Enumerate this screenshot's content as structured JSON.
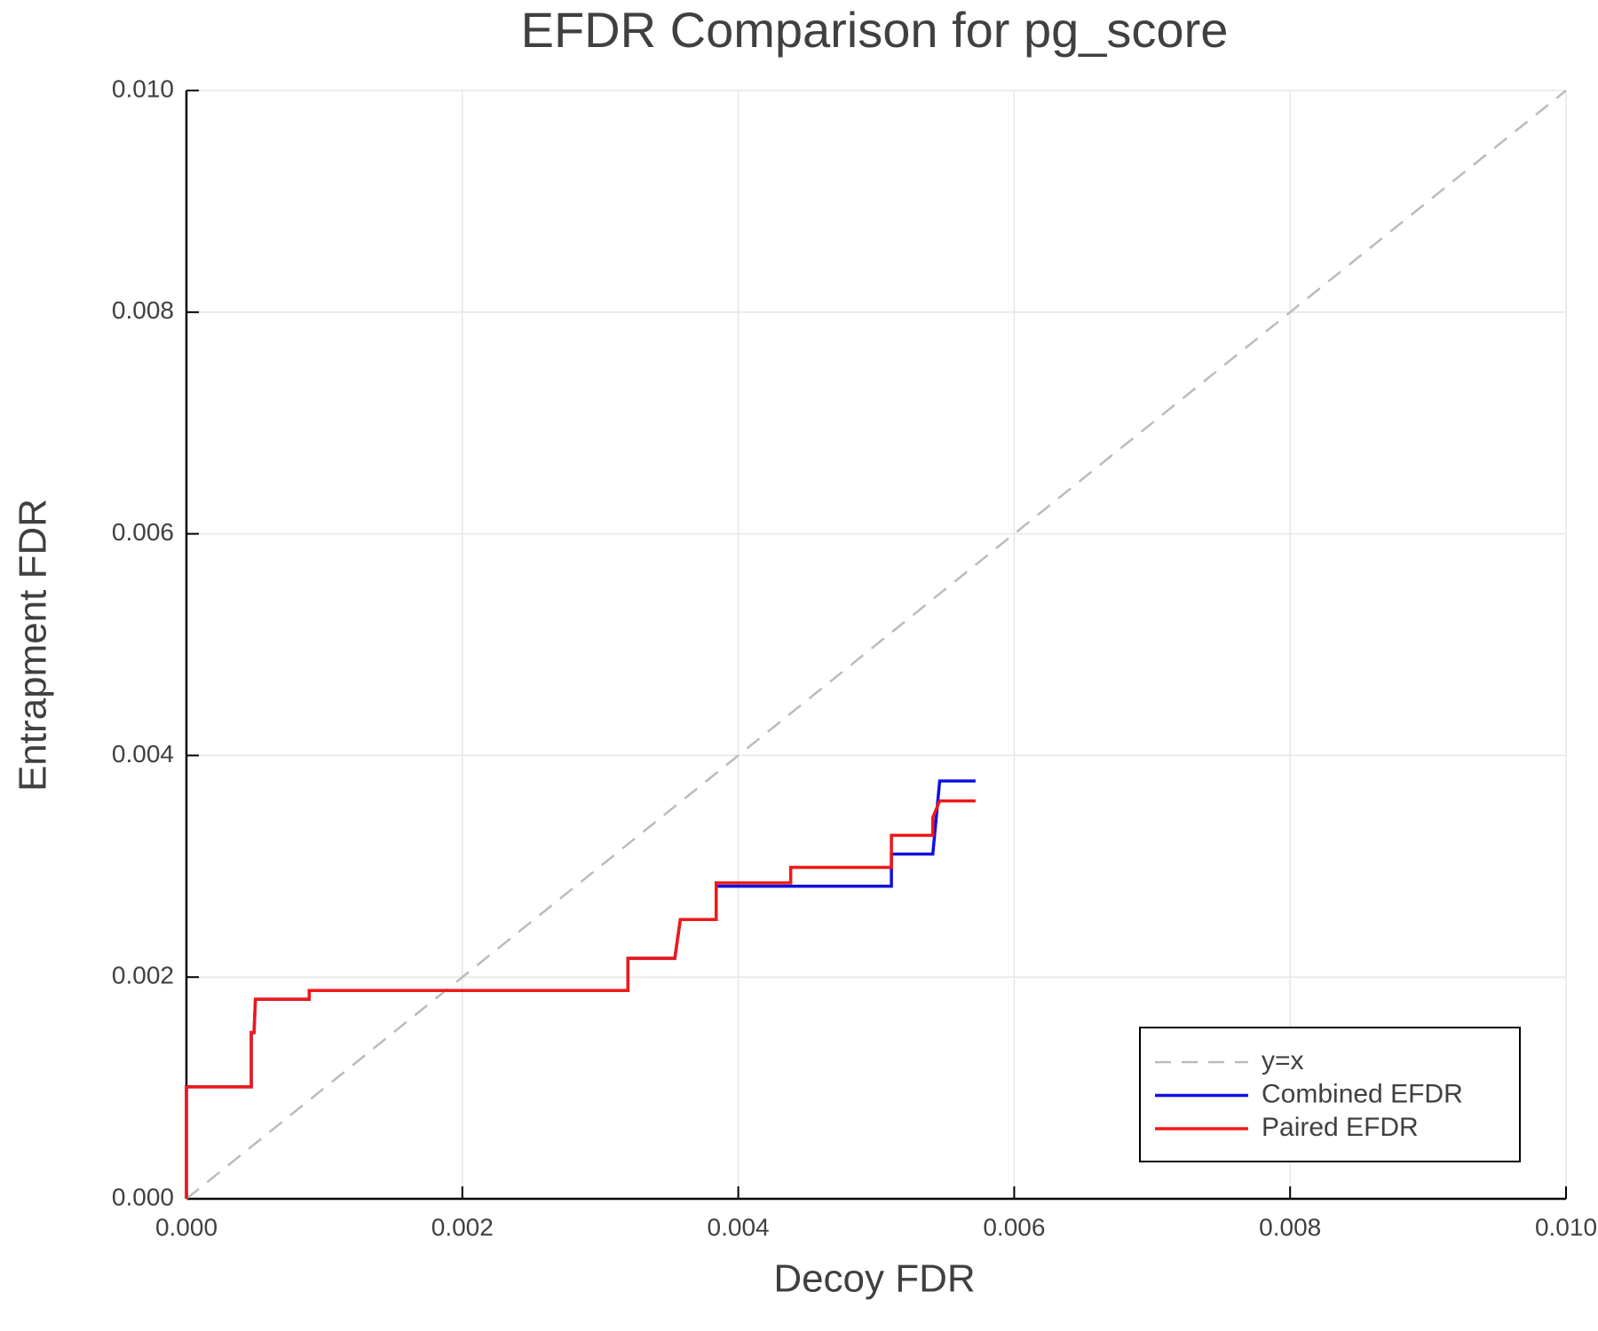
{
  "chart_data": {
    "type": "line",
    "title": "EFDR Comparison for pg_score",
    "x_label": "Decoy FDR",
    "y_label": "Entrapment FDR",
    "xlim": [
      0,
      0.01
    ],
    "ylim": [
      0,
      0.01
    ],
    "xticks": [
      {
        "value": 0,
        "label": "0.000"
      },
      {
        "value": 0.002,
        "label": "0.002"
      },
      {
        "value": 0.004,
        "label": "0.004"
      },
      {
        "value": 0.006,
        "label": "0.006"
      },
      {
        "value": 0.008,
        "label": "0.008"
      },
      {
        "value": 0.01,
        "label": "0.010"
      }
    ],
    "yticks": [
      {
        "value": 0,
        "label": "0.000"
      },
      {
        "value": 0.002,
        "label": "0.002"
      },
      {
        "value": 0.004,
        "label": "0.004"
      },
      {
        "value": 0.006,
        "label": "0.006"
      },
      {
        "value": 0.008,
        "label": "0.008"
      },
      {
        "value": 0.01,
        "label": "0.010"
      }
    ],
    "grid": true,
    "legend": "lower right",
    "series": [
      {
        "name": "y=x",
        "color": "#bbbbbb",
        "dashed": true,
        "x": [
          0,
          0.01
        ],
        "values": [
          0,
          0.01
        ]
      },
      {
        "name": "Combined EFDR",
        "color": "#1010e0",
        "dashed": false,
        "x": [
          0,
          0,
          0.00047,
          0.00047,
          0.00049,
          0.0005,
          0.00089,
          0.00089,
          0.0032,
          0.0032,
          0.00354,
          0.00358,
          0.00384,
          0.00384,
          0.00511,
          0.00511,
          0.00541,
          0.00546,
          0.00572
        ],
        "values": [
          0,
          0.00101,
          0.00101,
          0.0015,
          0.0015,
          0.0018,
          0.0018,
          0.00188,
          0.00188,
          0.00217,
          0.00217,
          0.00252,
          0.00252,
          0.00282,
          0.00282,
          0.00311,
          0.00311,
          0.00377,
          0.00377
        ]
      },
      {
        "name": "Paired EFDR",
        "color": "#f01818",
        "dashed": false,
        "x": [
          0,
          0,
          0.00047,
          0.00047,
          0.00049,
          0.0005,
          0.00089,
          0.00089,
          0.0032,
          0.0032,
          0.00354,
          0.00358,
          0.00384,
          0.00384,
          0.00438,
          0.00438,
          0.00511,
          0.00511,
          0.00541,
          0.00541,
          0.00546,
          0.00572
        ],
        "values": [
          0,
          0.00101,
          0.00101,
          0.0015,
          0.0015,
          0.0018,
          0.0018,
          0.00188,
          0.00188,
          0.00217,
          0.00217,
          0.00252,
          0.00252,
          0.00285,
          0.00285,
          0.00299,
          0.00299,
          0.00328,
          0.00328,
          0.00344,
          0.00359,
          0.00359
        ]
      }
    ]
  }
}
